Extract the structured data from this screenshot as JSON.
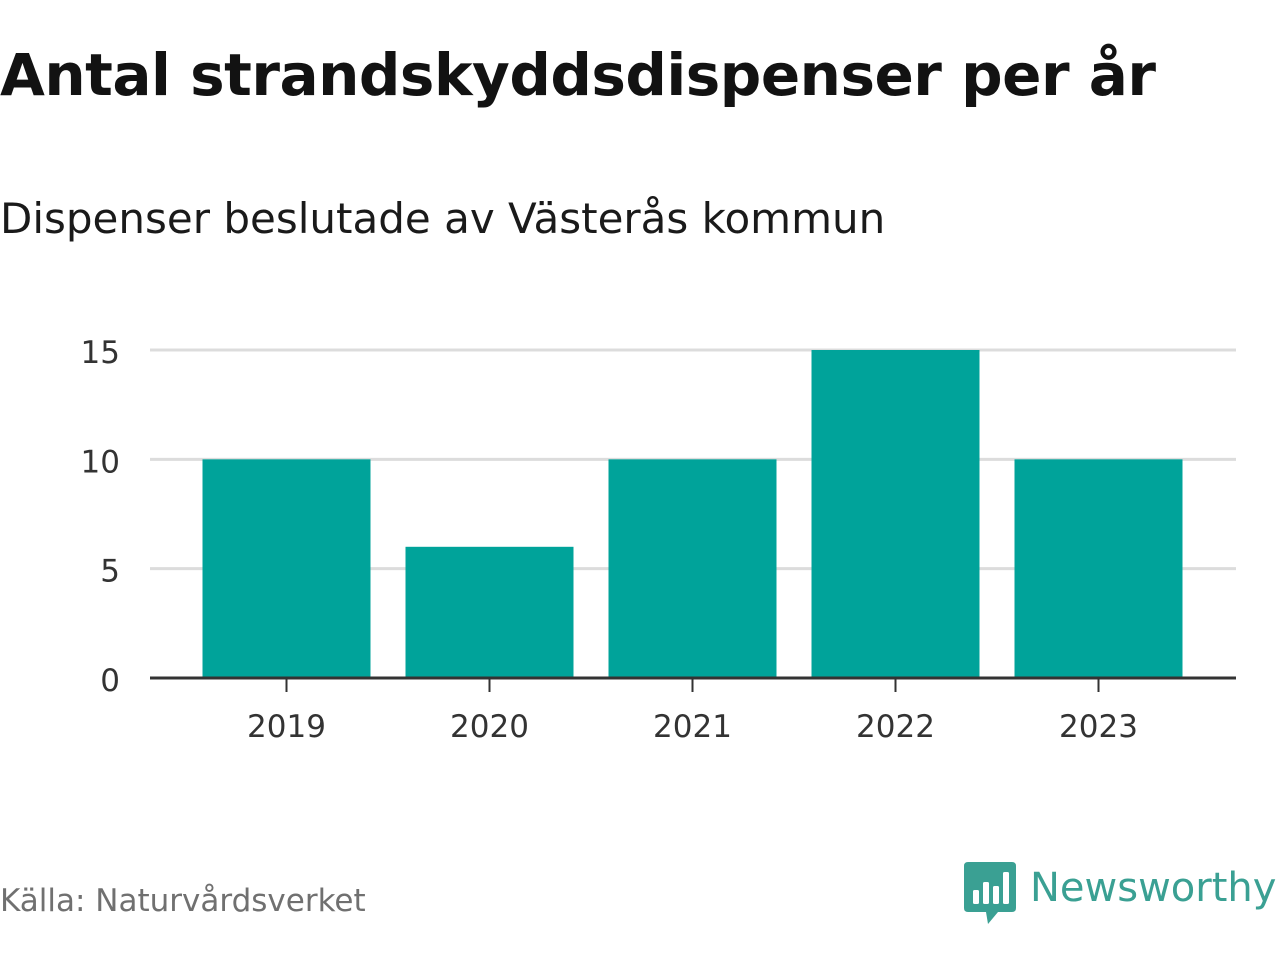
{
  "colors": {
    "bar": "#00a39a",
    "grid": "#dcdcdc",
    "axis": "#333333",
    "tick_text": "#333333",
    "brand": "#3aa093"
  },
  "header": {
    "title": "Antal strandskyddsdispenser per år",
    "subtitle": "Dispenser beslutade av Västerås kommun"
  },
  "footer": {
    "source": "Källa: Naturvårdsverket",
    "brand_name": "Newsworthy",
    "brand_icon": "speech-bubble-bar-chart-icon"
  },
  "chart_data": {
    "type": "bar",
    "title": "Antal strandskyddsdispenser per år",
    "subtitle": "Dispenser beslutade av Västerås kommun",
    "xlabel": "",
    "ylabel": "",
    "categories": [
      "2019",
      "2020",
      "2021",
      "2022",
      "2023"
    ],
    "values": [
      10,
      6,
      10,
      15,
      10
    ],
    "ylim": [
      0,
      15
    ],
    "yticks": [
      0,
      5,
      10,
      15
    ],
    "grid": true,
    "legend": "none"
  }
}
